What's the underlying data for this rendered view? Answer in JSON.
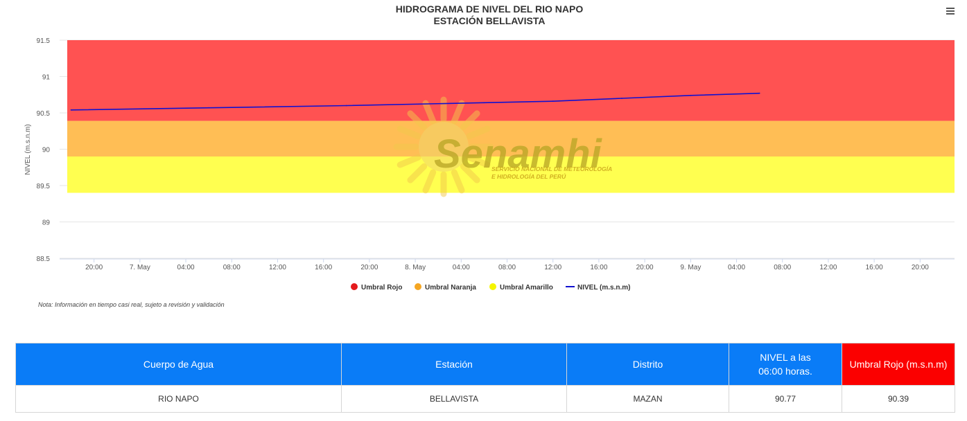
{
  "chart_data": {
    "type": "line",
    "title": "HIDROGRAMA DE NIVEL DEL RIO NAPO",
    "subtitle": "ESTACIÓN BELLAVISTA",
    "ylabel": "NIVEL (m.s.n.m)",
    "xlabel": "",
    "ylim": [
      88.5,
      91.5
    ],
    "y_ticks": [
      "91.5",
      "91",
      "90.5",
      "90",
      "89.5",
      "89",
      "88.5"
    ],
    "x_range": [
      "2024-05-06 17:00",
      "2024-05-09 23:00"
    ],
    "x_ticks": [
      {
        "t": "2024-05-06 20:00",
        "label": "20:00"
      },
      {
        "t": "2024-05-07 00:00",
        "label": "7. May"
      },
      {
        "t": "2024-05-07 04:00",
        "label": "04:00"
      },
      {
        "t": "2024-05-07 08:00",
        "label": "08:00"
      },
      {
        "t": "2024-05-07 12:00",
        "label": "12:00"
      },
      {
        "t": "2024-05-07 16:00",
        "label": "16:00"
      },
      {
        "t": "2024-05-07 20:00",
        "label": "20:00"
      },
      {
        "t": "2024-05-08 00:00",
        "label": "8. May"
      },
      {
        "t": "2024-05-08 04:00",
        "label": "04:00"
      },
      {
        "t": "2024-05-08 08:00",
        "label": "08:00"
      },
      {
        "t": "2024-05-08 12:00",
        "label": "12:00"
      },
      {
        "t": "2024-05-08 16:00",
        "label": "16:00"
      },
      {
        "t": "2024-05-08 20:00",
        "label": "20:00"
      },
      {
        "t": "2024-05-09 00:00",
        "label": "9. May"
      },
      {
        "t": "2024-05-09 04:00",
        "label": "04:00"
      },
      {
        "t": "2024-05-09 08:00",
        "label": "08:00"
      },
      {
        "t": "2024-05-09 12:00",
        "label": "12:00"
      },
      {
        "t": "2024-05-09 16:00",
        "label": "16:00"
      },
      {
        "t": "2024-05-09 20:00",
        "label": "20:00"
      }
    ],
    "bands": [
      {
        "name": "Umbral Rojo",
        "from": 90.39,
        "to": 91.5,
        "color": "#ff5252"
      },
      {
        "name": "Umbral Naranja",
        "from": 89.9,
        "to": 90.39,
        "color": "#ffbe55"
      },
      {
        "name": "Umbral Amarillo",
        "from": 89.4,
        "to": 89.9,
        "color": "#ffff50"
      }
    ],
    "series": [
      {
        "name": "NIVEL (m.s.n.m)",
        "color": "#1010d0",
        "x": [
          "2024-05-06 18:00",
          "2024-05-07 06:00",
          "2024-05-07 18:00",
          "2024-05-08 06:00",
          "2024-05-08 12:00",
          "2024-05-08 18:00",
          "2024-05-09 00:00",
          "2024-05-09 06:00"
        ],
        "y": [
          90.54,
          90.57,
          90.6,
          90.64,
          90.66,
          90.7,
          90.74,
          90.77
        ]
      }
    ],
    "legend": {
      "position": "bottom",
      "items": [
        {
          "label": "Umbral Rojo",
          "color": "#e41a1c",
          "symbol": "circle"
        },
        {
          "label": "Umbral Naranja",
          "color": "#f5a623",
          "symbol": "circle"
        },
        {
          "label": "Umbral Amarillo",
          "color": "#f5f500",
          "symbol": "circle"
        },
        {
          "label": "NIVEL (m.s.n.m)",
          "color": "#1010d0",
          "symbol": "line"
        }
      ]
    },
    "note": "Nota: Información en tiempo casi real, sujeto a revisión y validación",
    "watermark": {
      "brand": "Senamhi",
      "line1": "SERVICIO NACIONAL DE METEOROLOGÍA",
      "line2": "E HIDROLOGÍA DEL PERÚ"
    },
    "grid": true
  },
  "menu_icon": "hamburger-menu-icon",
  "table": {
    "headers": [
      "Cuerpo de Agua",
      "Estación",
      "Distrito",
      "NIVEL a las",
      "06:00 horas.",
      "Umbral Rojo (m.s.n.m)"
    ],
    "row": [
      "RIO NAPO",
      "BELLAVISTA",
      "MAZAN",
      "90.77",
      "90.39"
    ],
    "header_colors": {
      "blue": "#0a7cf7",
      "red": "#fb0000"
    }
  }
}
